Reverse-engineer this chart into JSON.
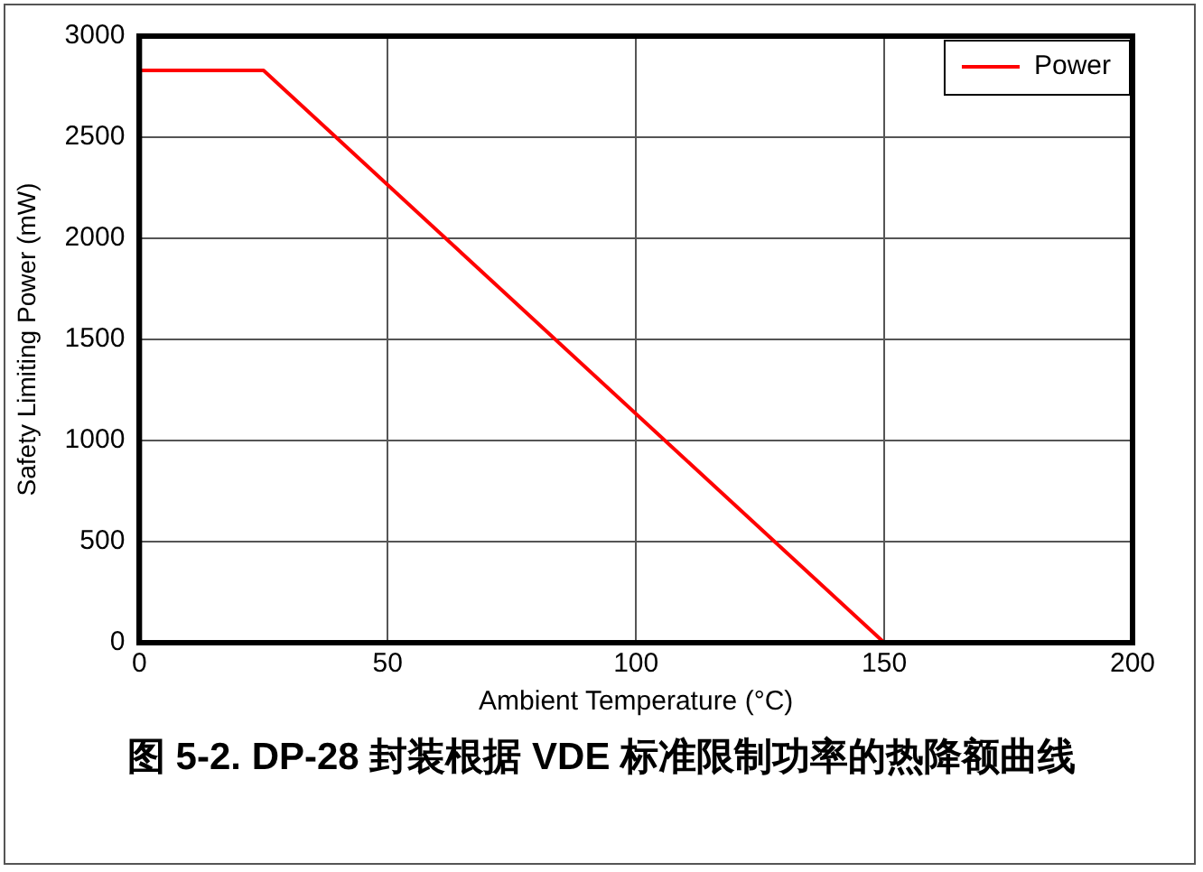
{
  "chart_data": {
    "type": "line",
    "title": "图 5-2. DP-28 封装根据 VDE 标准限制功率的热降额曲线",
    "xlabel": "Ambient Temperature (°C)",
    "ylabel": "Safety Limiting Power (mW)",
    "x": [
      0,
      25,
      150
    ],
    "series": [
      {
        "name": "Power",
        "color": "#ff0000",
        "values": [
          2830,
          2830,
          0
        ]
      }
    ],
    "xlim": [
      0,
      200
    ],
    "xticks": [
      0,
      50,
      100,
      150,
      200
    ],
    "ylim": [
      0,
      3000
    ],
    "yticks": [
      0,
      500,
      1000,
      1500,
      2000,
      2500,
      3000
    ],
    "grid": true,
    "legend": "top right",
    "marker": "none",
    "line_style": "solid"
  }
}
